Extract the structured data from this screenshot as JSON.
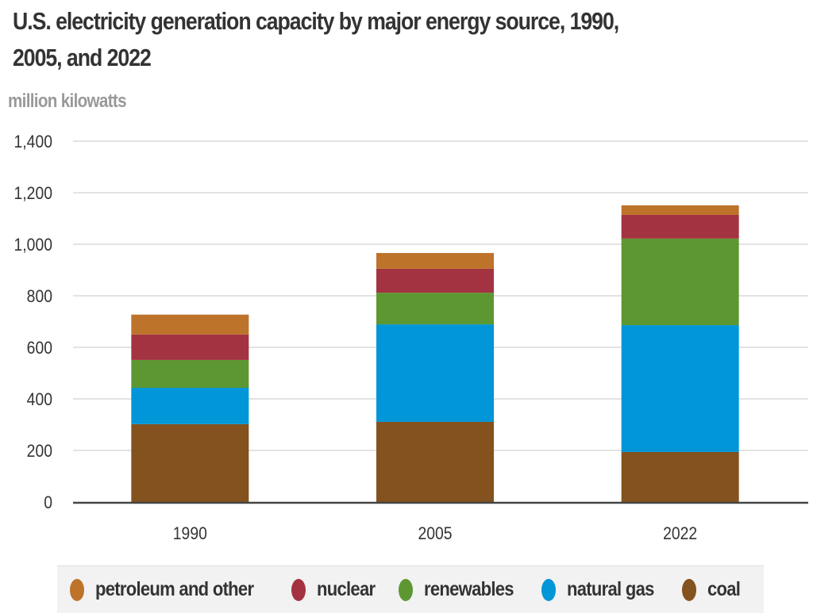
{
  "chart_data": {
    "type": "bar",
    "stacked": true,
    "title_lines": [
      "U.S. electricity generation capacity by major energy source, 1990,",
      "2005, and 2022"
    ],
    "title": "U.S. electricity generation capacity by major energy source, 1990, 2005, and 2022",
    "unit_label": "million kilowatts",
    "xlabel": "",
    "ylabel": "million kilowatts",
    "categories": [
      "1990",
      "2005",
      "2022"
    ],
    "ylim": [
      0,
      1400
    ],
    "yticks": [
      0,
      200,
      400,
      600,
      800,
      1000,
      1200,
      1400
    ],
    "ytick_labels": [
      "0",
      "200",
      "400",
      "600",
      "800",
      "1,000",
      "1,200",
      "1,400"
    ],
    "grid": true,
    "legend_position": "bottom",
    "series": [
      {
        "name": "coal",
        "color": "#84521e",
        "values": [
          302,
          311,
          194
        ]
      },
      {
        "name": "natural gas",
        "color": "#0096d7",
        "values": [
          141,
          378,
          492
        ]
      },
      {
        "name": "renewables",
        "color": "#5d9732",
        "values": [
          108,
          123,
          336
        ]
      },
      {
        "name": "nuclear",
        "color": "#a33340",
        "values": [
          99,
          93,
          92
        ]
      },
      {
        "name": "petroleum and other",
        "color": "#bd732a",
        "values": [
          77,
          61,
          37
        ]
      }
    ],
    "legend_order": [
      "petroleum and other",
      "nuclear",
      "renewables",
      "natural gas",
      "coal"
    ]
  }
}
